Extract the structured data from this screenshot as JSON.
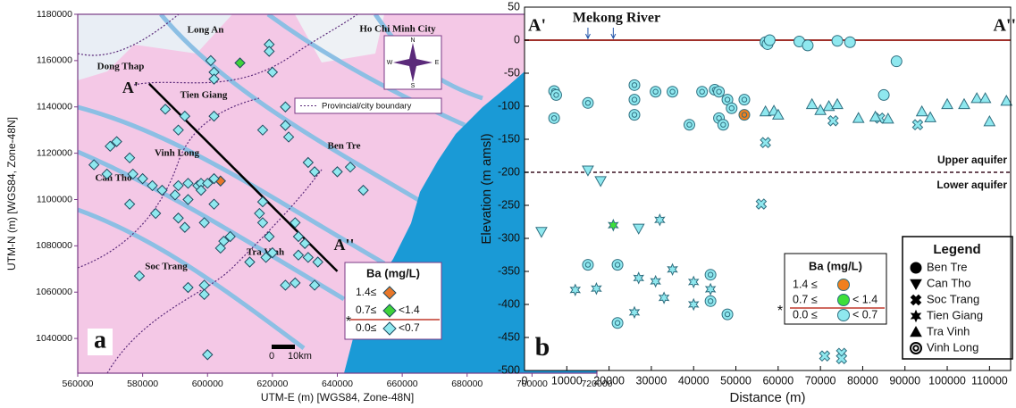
{
  "chart_data": [
    {
      "type": "map",
      "panel": "a",
      "xlabel": "UTM-E (m) [WGS84, Zone-48N]",
      "ylabel": "UTM-N (m) [WGS84, Zone-48N]",
      "xlim": [
        560000,
        720000
      ],
      "ylim": [
        1025000,
        1180000
      ],
      "xticks": [
        560000,
        580000,
        600000,
        620000,
        640000,
        660000,
        680000,
        700000,
        720000
      ],
      "yticks": [
        1040000,
        1060000,
        1080000,
        1100000,
        1120000,
        1140000,
        1160000,
        1180000
      ],
      "places": [
        "Long An",
        "Ho Chi Minh City",
        "Dong Thap",
        "Tien Giang",
        "Vinh Long",
        "Can Tho",
        "Ben Tre",
        "Tra Vinh",
        "Soc Trang"
      ],
      "section": {
        "start": "A'",
        "end": "A''",
        "x": [
          582000,
          640000
        ],
        "y": [
          1150000,
          1069000
        ]
      },
      "boundary_legend": "Provincial/city boundary",
      "compass": [
        "N",
        "E",
        "S",
        "W"
      ],
      "scale_bar": [
        "0",
        "10km"
      ],
      "legend_title": "Ba (mg/L)",
      "legend_mark": "*",
      "series": [
        {
          "name": "1.4≤",
          "color": "#e8772a",
          "x": [
            604000
          ],
          "y": [
            1108000
          ]
        },
        {
          "name": "0.7≤",
          "name_end": "<1.4",
          "color": "#3fd23a",
          "x": [
            610000
          ],
          "y": [
            1159000
          ]
        },
        {
          "name": "0.0≤",
          "name_end": "<0.7",
          "color": "#8fe8ef",
          "x": [
            619000,
            619000,
            601000,
            602000,
            602000,
            620000,
            587000,
            593000,
            602000,
            624000,
            624000,
            617000,
            625000,
            631000,
            633000,
            591000,
            572000,
            570000,
            565000,
            569000,
            576000,
            577000,
            580000,
            586000,
            591000,
            594000,
            597000,
            598000,
            600000,
            602000,
            598000,
            602000,
            594000,
            590000,
            583000,
            576000,
            584000,
            591000,
            593000,
            599000,
            605000,
            607000,
            617000,
            616000,
            617000,
            619000,
            618000,
            620000,
            627000,
            628000,
            630000,
            628000,
            631000,
            634000,
            624000,
            627000,
            633000,
            613000,
            604000,
            599000,
            599000,
            594000,
            579000,
            600000,
            644000,
            640000,
            648000
          ],
          "y": [
            1167000,
            1164000,
            1160000,
            1155000,
            1152000,
            1155000,
            1139000,
            1136000,
            1136000,
            1140000,
            1132000,
            1130000,
            1127000,
            1116000,
            1112000,
            1130000,
            1125000,
            1123000,
            1115000,
            1111000,
            1118000,
            1111000,
            1109000,
            1104000,
            1106000,
            1107000,
            1106000,
            1107000,
            1107000,
            1109000,
            1104000,
            1098000,
            1100000,
            1102000,
            1106000,
            1098000,
            1094000,
            1092000,
            1088000,
            1090000,
            1082000,
            1084000,
            1099000,
            1094000,
            1090000,
            1084000,
            1075000,
            1077000,
            1090000,
            1084000,
            1081000,
            1076000,
            1075000,
            1073000,
            1063000,
            1064000,
            1063000,
            1073000,
            1079000,
            1063000,
            1059000,
            1062000,
            1067000,
            1033000,
            1114000,
            1112000,
            1104000
          ]
        }
      ]
    },
    {
      "type": "scatter",
      "panel": "b",
      "xlabel": "Distance (m)",
      "ylabel": "Elevation (m amsl)",
      "xlim": [
        0,
        115000
      ],
      "ylim": [
        -500,
        50
      ],
      "xticks": [
        0,
        10000,
        20000,
        30000,
        40000,
        50000,
        60000,
        70000,
        80000,
        90000,
        100000,
        110000
      ],
      "yticks": [
        -500,
        -450,
        -400,
        -350,
        -300,
        -250,
        -200,
        -150,
        -100,
        -50,
        0,
        50
      ],
      "section": {
        "start": "A'",
        "end": "A''"
      },
      "river": {
        "label": "Mekong River",
        "x": [
          15000,
          21000
        ]
      },
      "surface_line": 0,
      "aquifer_boundary": {
        "value": -200,
        "above": "Upper aquifer",
        "below": "Lower aquifer"
      },
      "legend_title": "Legend",
      "ba_legend": {
        "title": "Ba (mg/L)",
        "mark": "*",
        "classes": [
          {
            "start": "1.4 ≤",
            "color": "#f07f1e"
          },
          {
            "start": "0.7 ≤",
            "end": "< 1.4",
            "color": "#3ee03a"
          },
          {
            "start": "0.0 ≤",
            "end": "< 0.7",
            "color": "#8fe8ef"
          }
        ]
      },
      "series": [
        {
          "name": "Ben Tre",
          "marker": "circle",
          "x": [
            57000,
            57500,
            58000,
            65000,
            67000,
            74000,
            77000,
            88000,
            85000
          ],
          "values": [
            -3,
            -6,
            0,
            -2,
            -8,
            -1,
            -3,
            -32,
            -83
          ],
          "ba_class": [
            2,
            2,
            2,
            2,
            2,
            2,
            2,
            2,
            2
          ]
        },
        {
          "name": "Can Tho",
          "marker": "down",
          "x": [
            4000,
            15000,
            18000,
            27000
          ],
          "values": [
            -290,
            -197,
            -213,
            -285
          ],
          "ba_class": [
            2,
            2,
            2,
            2
          ]
        },
        {
          "name": "Soc Trang",
          "marker": "cross",
          "x": [
            57000,
            73000,
            84000,
            93000,
            56000,
            71000,
            75000,
            75000
          ],
          "values": [
            -155,
            -122,
            -118,
            -128,
            -248,
            -478,
            -474,
            -482
          ],
          "ba_class": [
            2,
            2,
            2,
            2,
            2,
            2,
            2,
            2
          ]
        },
        {
          "name": "Tien Giang",
          "marker": "star",
          "x": [
            12000,
            17000,
            27000,
            26000,
            31000,
            32000,
            33000,
            35000,
            40000,
            40000,
            44000,
            21000
          ],
          "values": [
            -378,
            -376,
            -360,
            -412,
            -365,
            -272,
            -390,
            -347,
            -366,
            -400,
            -377,
            -280
          ],
          "ba_class": [
            2,
            2,
            2,
            2,
            2,
            2,
            2,
            2,
            2,
            2,
            2,
            1
          ]
        },
        {
          "name": "Tra Vinh",
          "marker": "up",
          "x": [
            57000,
            59000,
            60000,
            68000,
            70000,
            72000,
            74000,
            79000,
            83000,
            86000,
            94000,
            96000,
            100000,
            104000,
            107000,
            109000,
            110000,
            114000
          ],
          "values": [
            -108,
            -107,
            -113,
            -97,
            -106,
            -100,
            -97,
            -118,
            -116,
            -119,
            -108,
            -117,
            -97,
            -97,
            -88,
            -88,
            -123,
            -92
          ],
          "ba_class": [
            2,
            2,
            2,
            2,
            2,
            2,
            2,
            2,
            2,
            2,
            2,
            2,
            2,
            2,
            2,
            2,
            2,
            2
          ]
        },
        {
          "name": "Vinh Long",
          "marker": "ring",
          "x": [
            7000,
            7500,
            7000,
            15000,
            26000,
            26000,
            26000,
            31000,
            35000,
            39000,
            42000,
            45000,
            46000,
            46000,
            47000,
            48000,
            49000,
            52000,
            52000,
            15000,
            22000,
            22000,
            44000,
            44000,
            48000
          ],
          "values": [
            -77,
            -83,
            -118,
            -95,
            -68,
            -90,
            -113,
            -78,
            -78,
            -128,
            -78,
            -75,
            -78,
            -118,
            -128,
            -90,
            -103,
            -90,
            -113,
            -340,
            -340,
            -428,
            -355,
            -395,
            -415
          ],
          "ba_class": [
            2,
            2,
            2,
            2,
            2,
            2,
            2,
            2,
            2,
            2,
            2,
            2,
            2,
            2,
            2,
            2,
            2,
            2,
            0,
            2,
            2,
            2,
            2,
            2,
            2
          ]
        }
      ]
    }
  ]
}
